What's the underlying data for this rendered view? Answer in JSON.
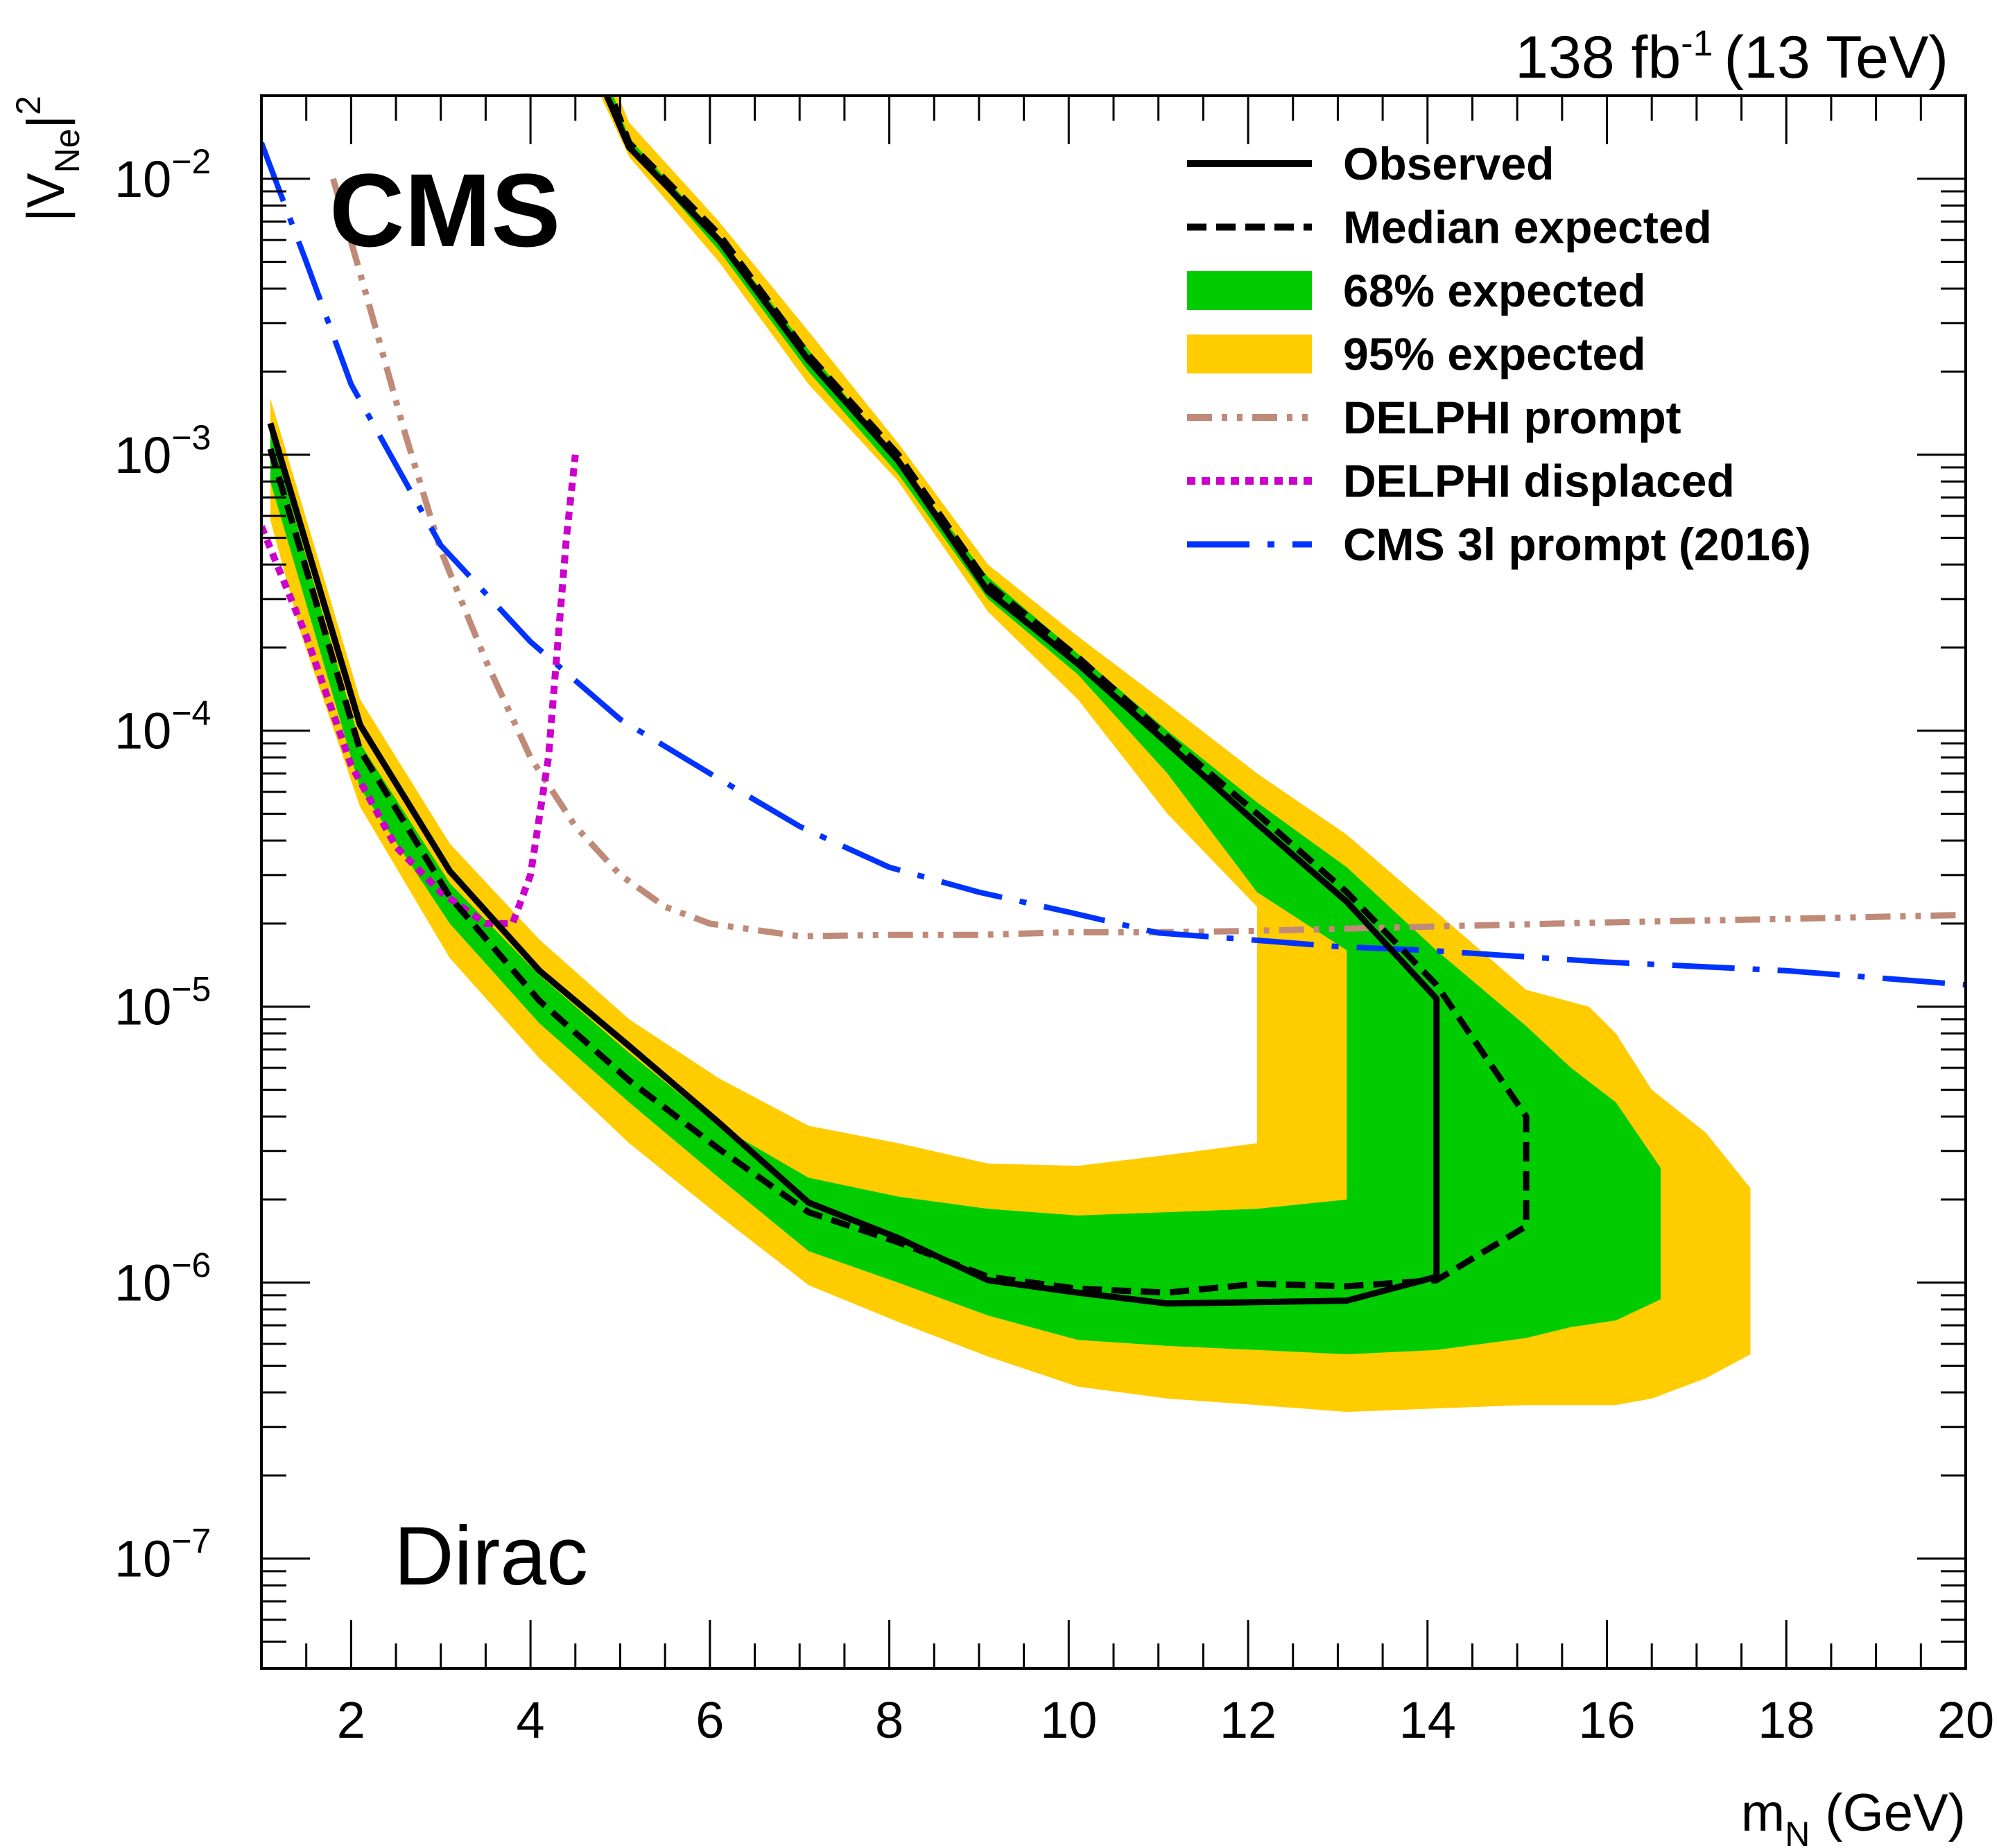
{
  "chart_data": {
    "type": "line",
    "experiment_label": "CMS",
    "model_label": "Dirac",
    "lumi_label": {
      "value": "138 fb",
      "exponent": "-1",
      "energy": "(13 TeV)"
    },
    "xlabel": {
      "main": "m",
      "sub": "N",
      "unit": "(GeV)"
    },
    "ylabel": {
      "main": "|V",
      "sub": "Ne",
      "tail": "|",
      "sup": "2"
    },
    "xlim": [
      1,
      20
    ],
    "ylim": [
      4e-08,
      0.02
    ],
    "y_scale": "log",
    "x_ticks": [
      2,
      4,
      6,
      8,
      10,
      12,
      14,
      16,
      18,
      20
    ],
    "x_tick_labels": [
      "2",
      "4",
      "6",
      "8",
      "10",
      "12",
      "14",
      "16",
      "18",
      "20"
    ],
    "y_ticks": [
      {
        "value": 1e-07,
        "base": "10",
        "exp": "−7"
      },
      {
        "value": 1e-06,
        "base": "10",
        "exp": "−6"
      },
      {
        "value": 1e-05,
        "base": "10",
        "exp": "−5"
      },
      {
        "value": 0.0001,
        "base": "10",
        "exp": "−4"
      },
      {
        "value": 0.001,
        "base": "10",
        "exp": "−3"
      },
      {
        "value": 0.01,
        "base": "10",
        "exp": "−2"
      }
    ],
    "legend_position": "top-right",
    "legend": [
      {
        "label": "Observed",
        "style": "solid",
        "color": "#000000"
      },
      {
        "label": "Median expected",
        "style": "dashed",
        "color": "#000000"
      },
      {
        "label": "68% expected",
        "style": "band",
        "color": "#00cc00"
      },
      {
        "label": "95% expected",
        "style": "band",
        "color": "#ffcc00"
      },
      {
        "label": "DELPHI prompt",
        "style": "dash-dot-dot",
        "color": "#bf8a78"
      },
      {
        "label": "DELPHI displaced",
        "style": "dotted",
        "color": "#cc00cc"
      },
      {
        "label": "CMS 3l prompt (2016)",
        "style": "long-dash-dot",
        "color": "#0033ff"
      }
    ],
    "bands": {
      "band95": [
        [
          1.1,
          0.0016
        ],
        [
          2.1,
          0.00013
        ],
        [
          3.1,
          3.9e-05
        ],
        [
          4.1,
          1.75e-05
        ],
        [
          5.1,
          9e-06
        ],
        [
          6.1,
          5.5e-06
        ],
        [
          7.1,
          3.7e-06
        ],
        [
          8.1,
          3.2e-06
        ],
        [
          9.1,
          2.7e-06
        ],
        [
          10.1,
          2.65e-06
        ],
        [
          11.1,
          2.9e-06
        ],
        [
          12.1,
          3.2e-06
        ],
        [
          12.1,
          2.3e-05
        ],
        [
          11.1,
          5e-05
        ],
        [
          10.1,
          0.00013
        ],
        [
          9.1,
          0.00027
        ],
        [
          8.1,
          0.0008
        ],
        [
          7.1,
          0.0018
        ],
        [
          6.1,
          0.005
        ],
        [
          5.1,
          0.012
        ],
        [
          4.75,
          0.021
        ],
        [
          4.95,
          0.021
        ],
        [
          5.1,
          0.016
        ],
        [
          6.1,
          0.007
        ],
        [
          7.1,
          0.0028
        ],
        [
          8.1,
          0.0011
        ],
        [
          9.1,
          0.0004
        ],
        [
          10.1,
          0.00022
        ],
        [
          11.1,
          0.000125
        ],
        [
          12.1,
          7e-05
        ],
        [
          13.1,
          4.2e-05
        ],
        [
          14.1,
          2.2e-05
        ],
        [
          15.1,
          1.15e-05
        ],
        [
          15.8,
          1e-05
        ],
        [
          16.1,
          8e-06
        ],
        [
          16.5,
          5e-06
        ],
        [
          17.1,
          3.5e-06
        ],
        [
          17.6,
          2.2e-06
        ],
        [
          17.6,
          5.5e-07
        ],
        [
          17.1,
          4.5e-07
        ],
        [
          16.5,
          3.8e-07
        ],
        [
          16.1,
          3.6e-07
        ],
        [
          15.1,
          3.6e-07
        ],
        [
          14.1,
          3.5e-07
        ],
        [
          13.1,
          3.4e-07
        ],
        [
          12.1,
          3.6e-07
        ],
        [
          11.1,
          3.8e-07
        ],
        [
          10.1,
          4.2e-07
        ],
        [
          9.1,
          5.4e-07
        ],
        [
          8.1,
          7.2e-07
        ],
        [
          7.1,
          9.8e-07
        ],
        [
          6.1,
          1.75e-06
        ],
        [
          5.1,
          3.2e-06
        ],
        [
          4.1,
          6.5e-06
        ],
        [
          3.1,
          1.5e-05
        ],
        [
          2.1,
          5.3e-05
        ],
        [
          1.45,
          0.00022
        ],
        [
          1.1,
          0.00058
        ]
      ],
      "band68": [
        [
          1.1,
          0.0012
        ],
        [
          2.1,
          9e-05
        ],
        [
          3.1,
          2.8e-05
        ],
        [
          4.1,
          1.3e-05
        ],
        [
          5.1,
          6.8e-06
        ],
        [
          6.1,
          3.7e-06
        ],
        [
          7.1,
          2.4e-06
        ],
        [
          8.1,
          2.05e-06
        ],
        [
          9.1,
          1.85e-06
        ],
        [
          10.1,
          1.75e-06
        ],
        [
          11.1,
          1.8e-06
        ],
        [
          12.1,
          1.85e-06
        ],
        [
          13.1,
          2e-06
        ],
        [
          13.1,
          1.6e-05
        ],
        [
          12.1,
          2.6e-05
        ],
        [
          11.1,
          7e-05
        ],
        [
          10.1,
          0.00016
        ],
        [
          9.1,
          0.0003
        ],
        [
          8.1,
          0.00085
        ],
        [
          7.1,
          0.002
        ],
        [
          6.1,
          0.0055
        ],
        [
          5.1,
          0.013
        ],
        [
          4.8,
          0.021
        ],
        [
          4.9,
          0.021
        ],
        [
          5.1,
          0.014
        ],
        [
          6.1,
          0.0062
        ],
        [
          7.1,
          0.0024
        ],
        [
          8.1,
          0.00095
        ],
        [
          9.1,
          0.00036
        ],
        [
          10.1,
          0.00019
        ],
        [
          11.1,
          0.0001
        ],
        [
          12.1,
          5.5e-05
        ],
        [
          13.1,
          3.2e-05
        ],
        [
          14.1,
          1.6e-05
        ],
        [
          15.1,
          8.5e-06
        ],
        [
          15.6,
          6e-06
        ],
        [
          16.1,
          4.5e-06
        ],
        [
          16.6,
          2.6e-06
        ],
        [
          16.6,
          8.7e-07
        ],
        [
          16.1,
          7.3e-07
        ],
        [
          15.6,
          6.9e-07
        ],
        [
          15.1,
          6.3e-07
        ],
        [
          14.1,
          5.7e-07
        ],
        [
          13.1,
          5.5e-07
        ],
        [
          12.1,
          5.7e-07
        ],
        [
          11.1,
          5.9e-07
        ],
        [
          10.1,
          6.2e-07
        ],
        [
          9.1,
          7.6e-07
        ],
        [
          8.1,
          1e-06
        ],
        [
          7.1,
          1.3e-06
        ],
        [
          6.1,
          2.4e-06
        ],
        [
          5.1,
          4.5e-06
        ],
        [
          4.1,
          8.7e-06
        ],
        [
          3.1,
          2e-05
        ],
        [
          2.1,
          6.2e-05
        ],
        [
          1.1,
          0.0008
        ]
      ]
    },
    "series": [
      {
        "name": "Observed",
        "style": "solid",
        "color": "#000000",
        "points": [
          [
            1.1,
            0.0013
          ],
          [
            2.1,
            0.000105
          ],
          [
            3.1,
            3.1e-05
          ],
          [
            4.1,
            1.35e-05
          ],
          [
            5.1,
            7.2e-06
          ],
          [
            6.1,
            3.8e-06
          ],
          [
            7.1,
            1.95e-06
          ],
          [
            8.1,
            1.45e-06
          ],
          [
            9.1,
            1.02e-06
          ],
          [
            10.1,
            9.2e-07
          ],
          [
            11.1,
            8.4e-07
          ],
          [
            12.1,
            8.5e-07
          ],
          [
            13.1,
            8.6e-07
          ],
          [
            14.1,
            1.05e-06
          ],
          [
            14.1,
            1.07e-05
          ],
          [
            13.1,
            2.4e-05
          ],
          [
            12.1,
            4.6e-05
          ],
          [
            11.1,
            9e-05
          ],
          [
            10.1,
            0.000175
          ],
          [
            9.1,
            0.00032
          ],
          [
            8.1,
            0.00095
          ],
          [
            7.1,
            0.0022
          ],
          [
            6.1,
            0.006
          ],
          [
            5.1,
            0.013
          ],
          [
            4.85,
            0.02
          ]
        ]
      },
      {
        "name": "Median expected",
        "style": "dashed",
        "color": "#000000",
        "points": [
          [
            1.1,
            0.00105
          ],
          [
            2.1,
            8.5e-05
          ],
          [
            3.1,
            2.5e-05
          ],
          [
            4.1,
            1.05e-05
          ],
          [
            5.1,
            5.4e-06
          ],
          [
            6.1,
            3.05e-06
          ],
          [
            7.1,
            1.8e-06
          ],
          [
            8.1,
            1.4e-06
          ],
          [
            9.1,
            1.05e-06
          ],
          [
            10.1,
            9.5e-07
          ],
          [
            11.1,
            9.2e-07
          ],
          [
            12.1,
            9.9e-07
          ],
          [
            13.1,
            9.7e-07
          ],
          [
            14.1,
            1.02e-06
          ],
          [
            15.1,
            1.6e-06
          ],
          [
            15.1,
            4e-06
          ],
          [
            14.1,
            1.2e-05
          ],
          [
            13.1,
            2.6e-05
          ],
          [
            12.1,
            5e-05
          ],
          [
            11.1,
            9.5e-05
          ],
          [
            10.1,
            0.000185
          ],
          [
            9.1,
            0.00034
          ],
          [
            8.1,
            0.001
          ],
          [
            7.1,
            0.0023
          ],
          [
            6.1,
            0.0063
          ],
          [
            5.1,
            0.0135
          ],
          [
            4.9,
            0.02
          ]
        ]
      },
      {
        "name": "DELPHI prompt",
        "style": "dash-dot-dot",
        "color": "#bf8a78",
        "points": [
          [
            1.8,
            0.01
          ],
          [
            2.2,
            0.0035
          ],
          [
            2.6,
            0.0012
          ],
          [
            3.0,
            0.00045
          ],
          [
            3.5,
            0.00018
          ],
          [
            4.0,
            8e-05
          ],
          [
            4.5,
            4.5e-05
          ],
          [
            5.0,
            3e-05
          ],
          [
            5.5,
            2.3e-05
          ],
          [
            6.0,
            2e-05
          ],
          [
            7.0,
            1.8e-05
          ],
          [
            8.0,
            1.82e-05
          ],
          [
            9.0,
            1.82e-05
          ],
          [
            10.0,
            1.86e-05
          ],
          [
            11.0,
            1.86e-05
          ],
          [
            12.0,
            1.88e-05
          ],
          [
            14.0,
            1.95e-05
          ],
          [
            16.0,
            2.02e-05
          ],
          [
            18.0,
            2.08e-05
          ],
          [
            20.0,
            2.15e-05
          ]
        ]
      },
      {
        "name": "DELPHI displaced",
        "style": "dotted",
        "color": "#cc00cc",
        "points": [
          [
            1.0,
            0.00055
          ],
          [
            1.5,
            0.00022
          ],
          [
            2.0,
            7.5e-05
          ],
          [
            2.5,
            3.8e-05
          ],
          [
            3.0,
            2.6e-05
          ],
          [
            3.5,
            2e-05
          ],
          [
            3.8,
            2e-05
          ],
          [
            4.0,
            3e-05
          ],
          [
            4.2,
            8e-05
          ],
          [
            4.3,
            0.0002
          ],
          [
            4.4,
            0.0005
          ],
          [
            4.5,
            0.001
          ]
        ]
      },
      {
        "name": "CMS 3l prompt (2016)",
        "style": "long-dash-dot",
        "color": "#0033ff",
        "points": [
          [
            1.0,
            0.0135
          ],
          [
            1.5,
            0.005
          ],
          [
            2.0,
            0.0018
          ],
          [
            3.0,
            0.00047
          ],
          [
            4.0,
            0.00021
          ],
          [
            5.0,
            0.00011
          ],
          [
            6.0,
            7e-05
          ],
          [
            7.0,
            4.5e-05
          ],
          [
            8.0,
            3.2e-05
          ],
          [
            9.0,
            2.6e-05
          ],
          [
            10.0,
            2.2e-05
          ],
          [
            11.0,
            1.85e-05
          ],
          [
            12.0,
            1.75e-05
          ],
          [
            13.0,
            1.65e-05
          ],
          [
            14.0,
            1.6e-05
          ],
          [
            16.0,
            1.45e-05
          ],
          [
            18.0,
            1.35e-05
          ],
          [
            20.0,
            1.2e-05
          ]
        ]
      }
    ]
  }
}
